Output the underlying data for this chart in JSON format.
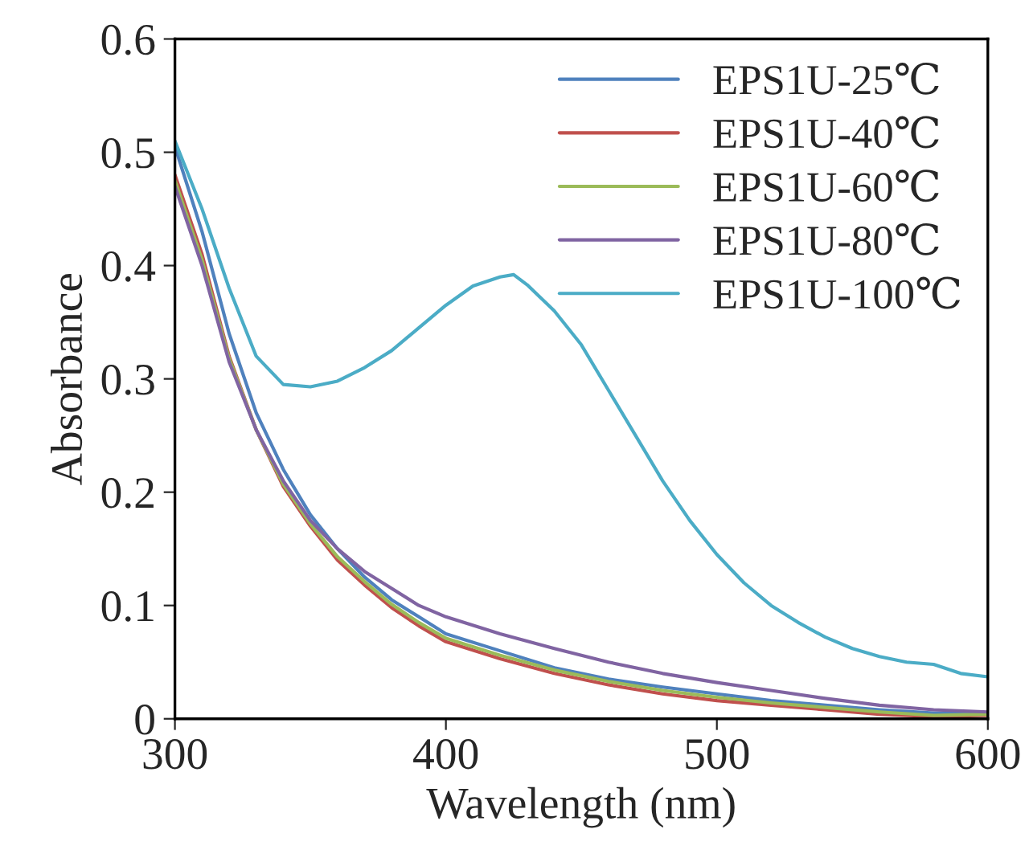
{
  "chart_data": {
    "type": "line",
    "xlabel": "Wavelength (nm)",
    "ylabel": "Absorbance",
    "x": [
      300,
      310,
      320,
      330,
      340,
      350,
      360,
      370,
      380,
      390,
      400,
      420,
      440,
      460,
      480,
      500,
      520,
      540,
      560,
      580,
      600
    ],
    "series": [
      {
        "name": "EPS1U-25℃",
        "color": "#4f81bd",
        "values": [
          0.505,
          0.43,
          0.34,
          0.27,
          0.22,
          0.18,
          0.15,
          0.125,
          0.105,
          0.09,
          0.075,
          0.06,
          0.045,
          0.035,
          0.028,
          0.022,
          0.016,
          0.012,
          0.008,
          0.005,
          0.005
        ]
      },
      {
        "name": "EPS1U-40℃",
        "color": "#c0504d",
        "values": [
          0.48,
          0.41,
          0.32,
          0.255,
          0.205,
          0.17,
          0.14,
          0.118,
          0.098,
          0.082,
          0.068,
          0.053,
          0.04,
          0.03,
          0.022,
          0.016,
          0.012,
          0.008,
          0.004,
          0.002,
          0.003
        ]
      },
      {
        "name": "EPS1U-60℃",
        "color": "#9bbb59",
        "values": [
          0.475,
          0.405,
          0.318,
          0.255,
          0.207,
          0.172,
          0.143,
          0.121,
          0.101,
          0.085,
          0.071,
          0.056,
          0.043,
          0.033,
          0.025,
          0.019,
          0.014,
          0.01,
          0.006,
          0.003,
          0.004
        ]
      },
      {
        "name": "EPS1U-80℃",
        "color": "#8064a2",
        "values": [
          0.47,
          0.4,
          0.315,
          0.255,
          0.21,
          0.175,
          0.15,
          0.13,
          0.115,
          0.1,
          0.09,
          0.075,
          0.062,
          0.05,
          0.04,
          0.032,
          0.025,
          0.018,
          0.012,
          0.008,
          0.006
        ]
      },
      {
        "name": "EPS1U-100℃",
        "color": "#4bacc6",
        "x": [
          300,
          310,
          320,
          330,
          340,
          350,
          360,
          370,
          380,
          390,
          400,
          410,
          420,
          425,
          430,
          440,
          450,
          460,
          470,
          480,
          490,
          500,
          510,
          520,
          530,
          540,
          550,
          560,
          570,
          580,
          590,
          600
        ],
        "values": [
          0.51,
          0.45,
          0.38,
          0.32,
          0.295,
          0.293,
          0.298,
          0.31,
          0.325,
          0.345,
          0.365,
          0.382,
          0.39,
          0.392,
          0.383,
          0.36,
          0.33,
          0.29,
          0.25,
          0.21,
          0.175,
          0.145,
          0.12,
          0.1,
          0.085,
          0.072,
          0.062,
          0.055,
          0.05,
          0.048,
          0.04,
          0.037
        ]
      }
    ],
    "xlim": [
      300,
      600
    ],
    "xticks": [
      300,
      400,
      500,
      600
    ],
    "ylim": [
      0,
      0.6
    ],
    "yticks": [
      {
        "value": 0,
        "label": "0"
      },
      0.1,
      0.2,
      0.3,
      0.4,
      0.5,
      0.6
    ],
    "grid": false,
    "legend": "top right"
  }
}
